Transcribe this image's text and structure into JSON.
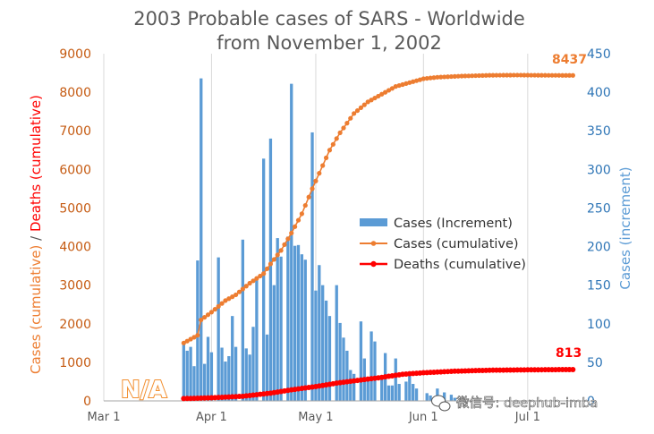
{
  "chart_data": {
    "type": "bar+line",
    "title_lines": [
      "2003 Probable cases of SARS - Worldwide",
      "from November 1, 2002"
    ],
    "ylabel_left_parts": [
      "Cases (cumulative)",
      " / ",
      "Deaths (cumulative)"
    ],
    "ylabel_right": "Cases (increment)",
    "left_axis": {
      "min": 0,
      "max": 9000,
      "ticks": [
        "0",
        "1000",
        "2000",
        "3000",
        "4000",
        "5000",
        "6000",
        "7000",
        "8000",
        "9000"
      ]
    },
    "right_axis": {
      "min": 0,
      "max": 450,
      "ticks": [
        "0",
        "50",
        "100",
        "150",
        "200",
        "250",
        "300",
        "350",
        "400",
        "450"
      ]
    },
    "x_axis": {
      "start": "2003-03-01",
      "end": "2003-07-17",
      "ticks": [
        {
          "label": "Mar 1",
          "date": "2003-03-01"
        },
        {
          "label": "Apr 1",
          "date": "2003-04-01"
        },
        {
          "label": "May 1",
          "date": "2003-05-01"
        },
        {
          "label": "Jun 1",
          "date": "2003-06-01"
        },
        {
          "label": "Jul 1",
          "date": "2003-07-01"
        }
      ]
    },
    "grid": "vertical-major",
    "legend_position": "center-right",
    "colors": {
      "bars": "#5b9bd5",
      "cases": "#ed7d31",
      "deaths": "#ff0000",
      "left_axis": "#c55a11",
      "right_axis": "#2e75b6"
    },
    "series": [
      {
        "name": "Cases (Increment)",
        "kind": "bar",
        "axis": "right",
        "points": [
          [
            "2003-03-24",
            75
          ],
          [
            "2003-03-25",
            65
          ],
          [
            "2003-03-26",
            70
          ],
          [
            "2003-03-27",
            45
          ],
          [
            "2003-03-28",
            182
          ],
          [
            "2003-03-29",
            418
          ],
          [
            "2003-03-30",
            48
          ],
          [
            "2003-03-31",
            83
          ],
          [
            "2003-04-01",
            63
          ],
          [
            "2003-04-03",
            186
          ],
          [
            "2003-04-04",
            69
          ],
          [
            "2003-04-05",
            51
          ],
          [
            "2003-04-06",
            58
          ],
          [
            "2003-04-07",
            110
          ],
          [
            "2003-04-08",
            70
          ],
          [
            "2003-04-10",
            209
          ],
          [
            "2003-04-11",
            68
          ],
          [
            "2003-04-12",
            60
          ],
          [
            "2003-04-13",
            96
          ],
          [
            "2003-04-14",
            157
          ],
          [
            "2003-04-16",
            314
          ],
          [
            "2003-04-17",
            86
          ],
          [
            "2003-04-18",
            340
          ],
          [
            "2003-04-19",
            150
          ],
          [
            "2003-04-20",
            211
          ],
          [
            "2003-04-21",
            187
          ],
          [
            "2003-04-23",
            213
          ],
          [
            "2003-04-24",
            411
          ],
          [
            "2003-04-25",
            201
          ],
          [
            "2003-04-26",
            202
          ],
          [
            "2003-04-27",
            190
          ],
          [
            "2003-04-28",
            183
          ],
          [
            "2003-04-30",
            348
          ],
          [
            "2003-05-01",
            143
          ],
          [
            "2003-05-02",
            176
          ],
          [
            "2003-05-03",
            150
          ],
          [
            "2003-05-04",
            130
          ],
          [
            "2003-05-05",
            110
          ],
          [
            "2003-05-07",
            150
          ],
          [
            "2003-05-08",
            101
          ],
          [
            "2003-05-09",
            82
          ],
          [
            "2003-05-10",
            65
          ],
          [
            "2003-05-11",
            40
          ],
          [
            "2003-05-12",
            35
          ],
          [
            "2003-05-14",
            103
          ],
          [
            "2003-05-15",
            55
          ],
          [
            "2003-05-16",
            30
          ],
          [
            "2003-05-17",
            90
          ],
          [
            "2003-05-18",
            77
          ],
          [
            "2003-05-20",
            30
          ],
          [
            "2003-05-21",
            62
          ],
          [
            "2003-05-22",
            20
          ],
          [
            "2003-05-23",
            20
          ],
          [
            "2003-05-24",
            55
          ],
          [
            "2003-05-25",
            22
          ],
          [
            "2003-05-27",
            25
          ],
          [
            "2003-05-28",
            35
          ],
          [
            "2003-05-29",
            22
          ],
          [
            "2003-05-30",
            16
          ],
          [
            "2003-06-02",
            10
          ],
          [
            "2003-06-03",
            7
          ],
          [
            "2003-06-05",
            16
          ],
          [
            "2003-06-06",
            6
          ],
          [
            "2003-06-07",
            11
          ],
          [
            "2003-06-09",
            8
          ],
          [
            "2003-06-10",
            4
          ]
        ]
      },
      {
        "name": "Cases (cumulative)",
        "kind": "line",
        "axis": "left",
        "points": [
          [
            "2003-03-24",
            1500
          ],
          [
            "2003-03-28",
            1700
          ],
          [
            "2003-03-29",
            2100
          ],
          [
            "2003-04-01",
            2300
          ],
          [
            "2003-04-05",
            2600
          ],
          [
            "2003-04-08",
            2750
          ],
          [
            "2003-04-12",
            3050
          ],
          [
            "2003-04-16",
            3300
          ],
          [
            "2003-04-18",
            3550
          ],
          [
            "2003-04-21",
            3900
          ],
          [
            "2003-04-24",
            4350
          ],
          [
            "2003-04-27",
            4850
          ],
          [
            "2003-04-30",
            5500
          ],
          [
            "2003-05-02",
            5900
          ],
          [
            "2003-05-05",
            6500
          ],
          [
            "2003-05-08",
            6950
          ],
          [
            "2003-05-12",
            7450
          ],
          [
            "2003-05-16",
            7750
          ],
          [
            "2003-05-20",
            7950
          ],
          [
            "2003-05-24",
            8150
          ],
          [
            "2003-05-28",
            8250
          ],
          [
            "2003-06-01",
            8350
          ],
          [
            "2003-06-05",
            8390
          ],
          [
            "2003-06-12",
            8420
          ],
          [
            "2003-06-20",
            8440
          ],
          [
            "2003-06-28",
            8445
          ],
          [
            "2003-07-05",
            8440
          ],
          [
            "2003-07-14",
            8437
          ]
        ]
      },
      {
        "name": "Deaths (cumulative)",
        "kind": "line",
        "axis": "left",
        "points": [
          [
            "2003-03-24",
            60
          ],
          [
            "2003-04-01",
            80
          ],
          [
            "2003-04-10",
            120
          ],
          [
            "2003-04-18",
            200
          ],
          [
            "2003-04-25",
            300
          ],
          [
            "2003-05-01",
            370
          ],
          [
            "2003-05-07",
            460
          ],
          [
            "2003-05-13",
            530
          ],
          [
            "2003-05-20",
            610
          ],
          [
            "2003-05-26",
            690
          ],
          [
            "2003-06-01",
            730
          ],
          [
            "2003-06-10",
            770
          ],
          [
            "2003-06-20",
            795
          ],
          [
            "2003-07-01",
            805
          ],
          [
            "2003-07-14",
            813
          ]
        ]
      }
    ],
    "annotations": [
      {
        "text": "8437",
        "series": "Cases (cumulative)"
      },
      {
        "text": "813",
        "series": "Deaths (cumulative)"
      }
    ],
    "na_label": "N/A"
  },
  "watermark": {
    "icon": "wechat-icon",
    "text": "微信号: deephub-imba"
  }
}
